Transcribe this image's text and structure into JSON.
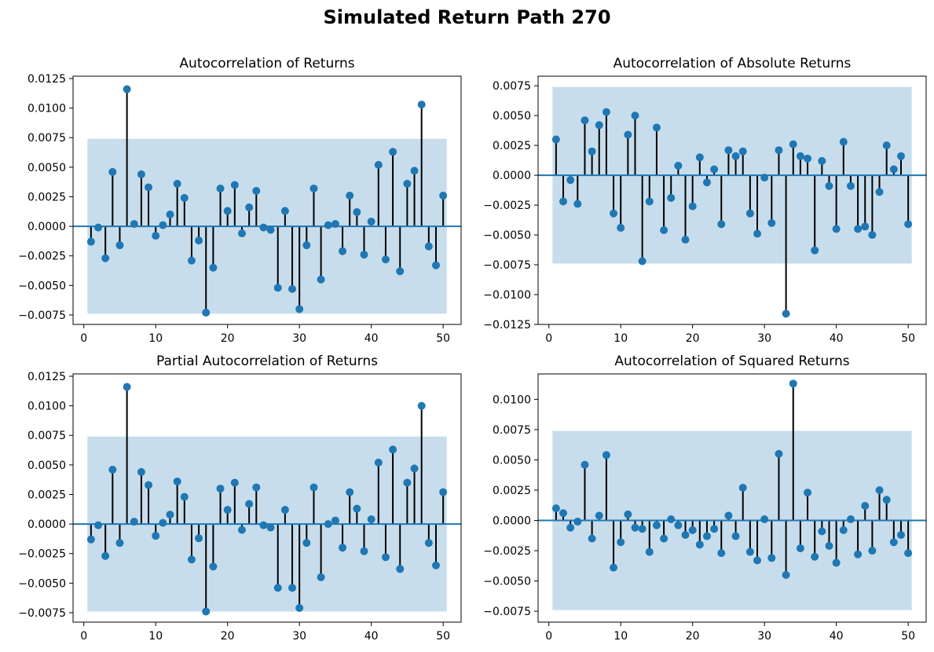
{
  "figure": {
    "title": "Simulated Return Path 270"
  },
  "chart_data": [
    {
      "type": "stem",
      "title": "Autocorrelation of Returns",
      "xlabel": "",
      "ylabel": "",
      "xlim": [
        -1.5,
        52.5
      ],
      "ylim": [
        -0.0083,
        0.0127
      ],
      "xticks": [
        0,
        10,
        20,
        30,
        40,
        50
      ],
      "yticks": [
        -0.0075,
        -0.005,
        -0.0025,
        0,
        0.0025,
        0.005,
        0.0075,
        0.01,
        0.0125
      ],
      "ytick_labels": [
        "−0.0075",
        "−0.0050",
        "−0.0025",
        "0.0000",
        "0.0025",
        "0.0050",
        "0.0075",
        "0.0100",
        "0.0125"
      ],
      "confidence_band": [
        -0.0074,
        0.0074
      ],
      "band_x": [
        0.5,
        50.5
      ],
      "lags": [
        1,
        2,
        3,
        4,
        5,
        6,
        7,
        8,
        9,
        10,
        11,
        12,
        13,
        14,
        15,
        16,
        17,
        18,
        19,
        20,
        21,
        22,
        23,
        24,
        25,
        26,
        27,
        28,
        29,
        30,
        31,
        32,
        33,
        34,
        35,
        36,
        37,
        38,
        39,
        40,
        41,
        42,
        43,
        44,
        45,
        46,
        47,
        48,
        49,
        50
      ],
      "values": [
        -0.0013,
        -0.0001,
        -0.0027,
        0.0046,
        -0.0016,
        0.0116,
        0.0002,
        0.0044,
        0.0033,
        -0.0008,
        0.0001,
        0.001,
        0.0036,
        0.0024,
        -0.0029,
        -0.0012,
        -0.0073,
        -0.0035,
        0.0032,
        0.0013,
        0.0035,
        -0.0006,
        0.0016,
        0.003,
        -0.0001,
        -0.0003,
        -0.0052,
        0.0013,
        -0.0053,
        -0.007,
        -0.0016,
        0.0032,
        -0.0045,
        0.0001,
        0.0002,
        -0.0021,
        0.0026,
        0.0012,
        -0.0024,
        0.0004,
        0.0052,
        -0.0028,
        0.0063,
        -0.0038,
        0.0036,
        0.0047,
        0.0103,
        -0.0017,
        -0.0033,
        0.0026
      ]
    },
    {
      "type": "stem",
      "title": "Autocorrelation of Absolute Returns",
      "xlabel": "",
      "ylabel": "",
      "xlim": [
        -1.5,
        52.5
      ],
      "ylim": [
        -0.0125,
        0.0083
      ],
      "xticks": [
        0,
        10,
        20,
        30,
        40,
        50
      ],
      "yticks": [
        -0.0125,
        -0.01,
        -0.0075,
        -0.005,
        -0.0025,
        0,
        0.0025,
        0.005,
        0.0075
      ],
      "ytick_labels": [
        "−0.0125",
        "−0.0100",
        "−0.0075",
        "−0.0050",
        "−0.0025",
        "0.0000",
        "0.0025",
        "0.0050",
        "0.0075"
      ],
      "confidence_band": [
        -0.0074,
        0.0074
      ],
      "band_x": [
        0.5,
        50.5
      ],
      "lags": [
        1,
        2,
        3,
        4,
        5,
        6,
        7,
        8,
        9,
        10,
        11,
        12,
        13,
        14,
        15,
        16,
        17,
        18,
        19,
        20,
        21,
        22,
        23,
        24,
        25,
        26,
        27,
        28,
        29,
        30,
        31,
        32,
        33,
        34,
        35,
        36,
        37,
        38,
        39,
        40,
        41,
        42,
        43,
        44,
        45,
        46,
        47,
        48,
        49,
        50
      ],
      "values": [
        0.003,
        -0.0022,
        -0.0004,
        -0.0024,
        0.0046,
        0.002,
        0.0042,
        0.0053,
        -0.0032,
        -0.0044,
        0.0034,
        0.005,
        -0.0072,
        -0.0022,
        0.004,
        -0.0046,
        -0.0019,
        0.0008,
        -0.0054,
        -0.0026,
        0.0015,
        -0.0006,
        0.0005,
        -0.0041,
        0.0021,
        0.0016,
        0.002,
        -0.0032,
        -0.0049,
        -0.0002,
        -0.004,
        0.0021,
        -0.0116,
        0.0026,
        0.0016,
        0.0014,
        -0.0063,
        0.0012,
        -0.0009,
        -0.0045,
        0.0028,
        -0.0009,
        -0.0045,
        -0.0043,
        -0.005,
        -0.0014,
        0.0025,
        0.0005,
        0.0016,
        -0.0041
      ]
    },
    {
      "type": "stem",
      "title": "Partial Autocorrelation of Returns",
      "xlabel": "",
      "ylabel": "",
      "xlim": [
        -1.5,
        52.5
      ],
      "ylim": [
        -0.0083,
        0.0127
      ],
      "xticks": [
        0,
        10,
        20,
        30,
        40,
        50
      ],
      "yticks": [
        -0.0075,
        -0.005,
        -0.0025,
        0,
        0.0025,
        0.005,
        0.0075,
        0.01,
        0.0125
      ],
      "ytick_labels": [
        "−0.0075",
        "−0.0050",
        "−0.0025",
        "0.0000",
        "0.0025",
        "0.0050",
        "0.0075",
        "0.0100",
        "0.0125"
      ],
      "confidence_band": [
        -0.0074,
        0.0074
      ],
      "band_x": [
        0.5,
        50.5
      ],
      "lags": [
        1,
        2,
        3,
        4,
        5,
        6,
        7,
        8,
        9,
        10,
        11,
        12,
        13,
        14,
        15,
        16,
        17,
        18,
        19,
        20,
        21,
        22,
        23,
        24,
        25,
        26,
        27,
        28,
        29,
        30,
        31,
        32,
        33,
        34,
        35,
        36,
        37,
        38,
        39,
        40,
        41,
        42,
        43,
        44,
        45,
        46,
        47,
        48,
        49,
        50
      ],
      "values": [
        -0.0013,
        -0.0001,
        -0.0027,
        0.0046,
        -0.0016,
        0.0116,
        0.0002,
        0.0044,
        0.0033,
        -0.001,
        0.0001,
        0.0008,
        0.0036,
        0.0023,
        -0.003,
        -0.0012,
        -0.0074,
        -0.0036,
        0.003,
        0.0012,
        0.0035,
        -0.0005,
        0.0017,
        0.0031,
        -0.0001,
        -0.0003,
        -0.0054,
        0.0012,
        -0.0054,
        -0.0071,
        -0.0016,
        0.0031,
        -0.0045,
        0,
        0.0003,
        -0.002,
        0.0027,
        0.0013,
        -0.0023,
        0.0004,
        0.0052,
        -0.0028,
        0.0063,
        -0.0038,
        0.0035,
        0.0047,
        0.01,
        -0.0016,
        -0.0035,
        0.0027
      ]
    },
    {
      "type": "stem",
      "title": "Autocorrelation of Squared Returns",
      "xlabel": "",
      "ylabel": "",
      "xlim": [
        -1.5,
        52.5
      ],
      "ylim": [
        -0.0084,
        0.0121
      ],
      "xticks": [
        0,
        10,
        20,
        30,
        40,
        50
      ],
      "yticks": [
        -0.0075,
        -0.005,
        -0.0025,
        0,
        0.0025,
        0.005,
        0.0075,
        0.01
      ],
      "ytick_labels": [
        "−0.0075",
        "−0.0050",
        "−0.0025",
        "0.0000",
        "0.0025",
        "0.0050",
        "0.0075",
        "0.0100"
      ],
      "confidence_band": [
        -0.0074,
        0.0074
      ],
      "band_x": [
        0.5,
        50.5
      ],
      "lags": [
        1,
        2,
        3,
        4,
        5,
        6,
        7,
        8,
        9,
        10,
        11,
        12,
        13,
        14,
        15,
        16,
        17,
        18,
        19,
        20,
        21,
        22,
        23,
        24,
        25,
        26,
        27,
        28,
        29,
        30,
        31,
        32,
        33,
        34,
        35,
        36,
        37,
        38,
        39,
        40,
        41,
        42,
        43,
        44,
        45,
        46,
        47,
        48,
        49,
        50
      ],
      "values": [
        0.001,
        0.0006,
        -0.0006,
        -0.0001,
        0.0046,
        -0.0015,
        0.0004,
        0.0054,
        -0.0039,
        -0.0018,
        0.0005,
        -0.0006,
        -0.0007,
        -0.0026,
        -0.0004,
        -0.0015,
        0.0001,
        -0.0004,
        -0.0012,
        -0.0008,
        -0.002,
        -0.0013,
        -0.0007,
        -0.0027,
        0.0004,
        -0.0013,
        0.0027,
        -0.0026,
        -0.0033,
        0.0001,
        -0.0031,
        0.0055,
        -0.0045,
        0.0113,
        -0.0023,
        0.0023,
        -0.003,
        -0.0009,
        -0.0021,
        -0.0035,
        -0.0008,
        0.0001,
        -0.0028,
        0.0012,
        -0.0025,
        0.0025,
        0.0017,
        -0.0018,
        -0.0012,
        -0.0027
      ]
    }
  ],
  "colors": {
    "stem_line": "#000000",
    "marker": "#1f77b4",
    "baseline": "#1f77b4",
    "band": "#1f77b4",
    "band_opacity": 0.25
  }
}
